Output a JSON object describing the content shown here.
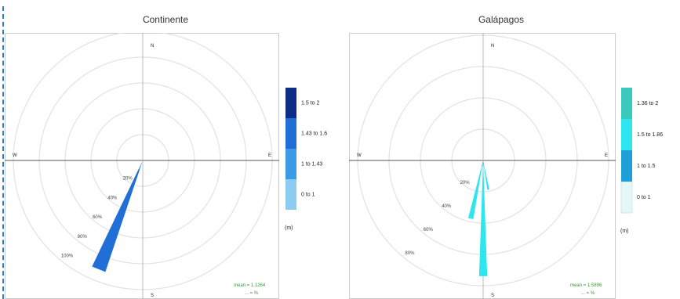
{
  "chart_data": [
    {
      "type": "windrose",
      "title": "Continente",
      "compass": {
        "N": "N",
        "E": "E",
        "S": "S",
        "W": "W"
      },
      "ring_labels": [
        "20%",
        "40%",
        "60%",
        "80%",
        "100%"
      ],
      "ring_max": 100,
      "legend_title": "(m)",
      "bins": [
        {
          "label": "0 to 1",
          "color": "#8ecbf0"
        },
        {
          "label": "1 to 1.43",
          "color": "#3b9be6"
        },
        {
          "label": "1.43 to 1.6",
          "color": "#1f6fd6"
        },
        {
          "label": "1.5 to 2",
          "color": "#0b2d86"
        }
      ],
      "petals": [
        {
          "direction_deg": 202,
          "width_deg": 7,
          "stack": [
            {
              "bin": 0,
              "pct": 2
            },
            {
              "bin": 1,
              "pct": 5
            },
            {
              "bin": 2,
              "pct": 84
            }
          ]
        }
      ],
      "stats": [
        "mean = 1.1264",
        "... = %"
      ]
    },
    {
      "type": "windrose",
      "title": "Galápagos",
      "compass": {
        "N": "N",
        "E": "E",
        "S": "S",
        "W": "W"
      },
      "ring_labels": [
        "20%",
        "40%",
        "60%",
        "80%"
      ],
      "ring_max": 80,
      "legend_title": "(m)",
      "bins": [
        {
          "label": "0 to 1",
          "color": "#e6f7f9"
        },
        {
          "label": "1 to 1.5",
          "color": "#1f9fd8"
        },
        {
          "label": "1.5 to 1.86",
          "color": "#2ee6ee"
        },
        {
          "label": "1.36 to 2",
          "color": "#3ac9bd"
        }
      ],
      "petals": [
        {
          "direction_deg": 180,
          "width_deg": 4,
          "stack": [
            {
              "bin": 1,
              "pct": 4
            },
            {
              "bin": 2,
              "pct": 70
            }
          ]
        },
        {
          "direction_deg": 192,
          "width_deg": 5,
          "stack": [
            {
              "bin": 1,
              "pct": 4
            },
            {
              "bin": 2,
              "pct": 34
            }
          ]
        },
        {
          "direction_deg": 170,
          "width_deg": 4,
          "stack": [
            {
              "bin": 1,
              "pct": 3
            },
            {
              "bin": 2,
              "pct": 16
            }
          ]
        }
      ],
      "stats": [
        "mean = 1.5896",
        "... = %"
      ]
    }
  ]
}
